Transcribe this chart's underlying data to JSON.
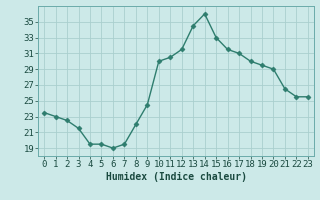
{
  "x": [
    0,
    1,
    2,
    3,
    4,
    5,
    6,
    7,
    8,
    9,
    10,
    11,
    12,
    13,
    14,
    15,
    16,
    17,
    18,
    19,
    20,
    21,
    22,
    23
  ],
  "y": [
    23.5,
    23.0,
    22.5,
    21.5,
    19.5,
    19.5,
    19.0,
    19.5,
    22.0,
    24.5,
    30.0,
    30.5,
    31.5,
    34.5,
    36.0,
    33.0,
    31.5,
    31.0,
    30.0,
    29.5,
    29.0,
    26.5,
    25.5,
    25.5
  ],
  "line_color": "#2e7d6e",
  "bg_color": "#cce9e8",
  "grid_color": "#aacfce",
  "xlabel": "Humidex (Indice chaleur)",
  "yticks": [
    19,
    21,
    23,
    25,
    27,
    29,
    31,
    33,
    35
  ],
  "ylim": [
    18.0,
    37.0
  ],
  "xlim": [
    -0.5,
    23.5
  ],
  "marker": "D",
  "marker_size": 2.5,
  "linewidth": 1.0,
  "xlabel_fontsize": 7,
  "tick_fontsize": 6.5
}
